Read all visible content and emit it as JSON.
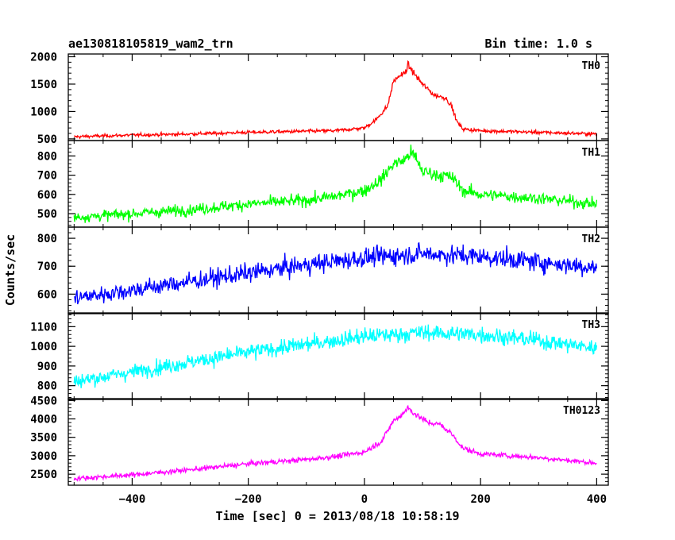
{
  "chart_data": {
    "type": "line",
    "title": "ae130818105819_wam2_trn",
    "subtitle": "Bin time: 1.0 s",
    "xlabel": "Time [sec] 0 = 2013/08/18 10:58:19",
    "ylabel": "Counts/sec",
    "xlim": [
      -510,
      420
    ],
    "x_ticks": [
      -400,
      -200,
      0,
      200,
      400
    ],
    "x_tick_labels": [
      "−400",
      "−200",
      "0",
      "200",
      "400"
    ],
    "bin_time_s": 1.0,
    "panels": [
      {
        "name": "TH0",
        "color": "#ff0000",
        "ylim": [
          470,
          2050
        ],
        "y_ticks": [
          500,
          1000,
          1500,
          2000
        ],
        "y_tick_labels": [
          "500",
          "1000",
          "1500",
          "2000"
        ],
        "x": [
          -500,
          -400,
          -300,
          -200,
          -100,
          -50,
          0,
          20,
          40,
          50,
          60,
          70,
          75,
          85,
          100,
          120,
          140,
          150,
          160,
          170,
          200,
          300,
          400
        ],
        "y": [
          540,
          570,
          590,
          620,
          640,
          650,
          700,
          850,
          1100,
          1550,
          1650,
          1700,
          1850,
          1700,
          1500,
          1300,
          1250,
          1100,
          800,
          680,
          650,
          620,
          590
        ]
      },
      {
        "name": "TH1",
        "color": "#00ff00",
        "ylim": [
          430,
          880
        ],
        "y_ticks": [
          500,
          600,
          700,
          800
        ],
        "y_tick_labels": [
          "500",
          "600",
          "700",
          "800"
        ],
        "x": [
          -500,
          -400,
          -300,
          -200,
          -100,
          -50,
          0,
          30,
          50,
          70,
          80,
          90,
          100,
          130,
          150,
          170,
          200,
          300,
          400
        ],
        "y": [
          480,
          500,
          520,
          550,
          570,
          590,
          620,
          680,
          760,
          780,
          820,
          780,
          720,
          700,
          690,
          620,
          600,
          580,
          550
        ]
      },
      {
        "name": "TH2",
        "color": "#0000ff",
        "ylim": [
          530,
          840
        ],
        "y_ticks": [
          600,
          700,
          800
        ],
        "y_tick_labels": [
          "600",
          "700",
          "800"
        ],
        "x": [
          -500,
          -400,
          -300,
          -200,
          -100,
          0,
          100,
          200,
          300,
          400
        ],
        "y": [
          585,
          615,
          645,
          675,
          705,
          730,
          745,
          735,
          715,
          695
        ]
      },
      {
        "name": "TH3",
        "color": "#00ffff",
        "ylim": [
          730,
          1170
        ],
        "y_ticks": [
          800,
          900,
          1000,
          1100
        ],
        "y_tick_labels": [
          "800",
          "900",
          "1000",
          "1100"
        ],
        "x": [
          -500,
          -400,
          -300,
          -200,
          -100,
          0,
          100,
          200,
          300,
          400
        ],
        "y": [
          820,
          870,
          920,
          970,
          1010,
          1050,
          1070,
          1060,
          1030,
          990
        ]
      },
      {
        "name": "TH0123",
        "color": "#ff00ff",
        "ylim": [
          2200,
          4550
        ],
        "y_ticks": [
          2500,
          3000,
          3500,
          4000,
          4500
        ],
        "y_tick_labels": [
          "2500",
          "3000",
          "3500",
          "4000",
          "4500"
        ],
        "x": [
          -500,
          -400,
          -300,
          -200,
          -100,
          -50,
          0,
          30,
          50,
          60,
          75,
          90,
          110,
          130,
          150,
          170,
          200,
          300,
          400
        ],
        "y": [
          2380,
          2480,
          2620,
          2780,
          2900,
          2980,
          3100,
          3400,
          3950,
          4050,
          4300,
          4100,
          3900,
          3850,
          3600,
          3200,
          3050,
          2950,
          2800
        ]
      }
    ],
    "grid": false,
    "legend": "none"
  }
}
